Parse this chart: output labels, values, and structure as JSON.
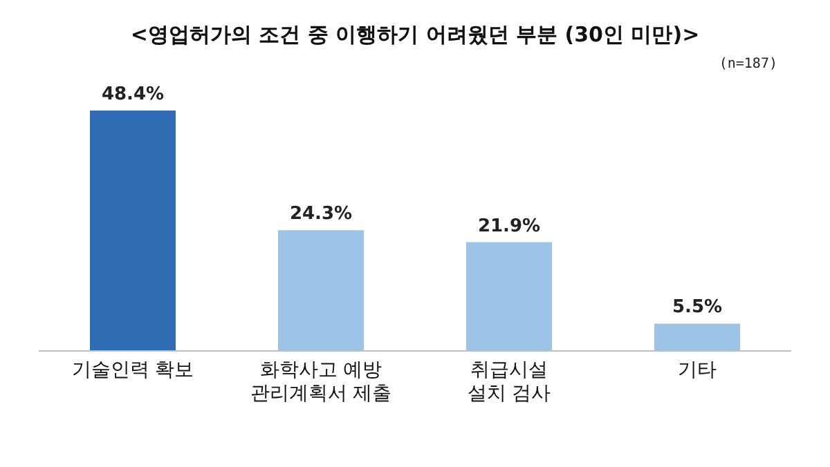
{
  "chart_data": {
    "type": "bar",
    "title": "<영업허가의 조건 중 이행하기 어려웠던 부분 (30인 미만)>",
    "annotations": [
      "(n=187)"
    ],
    "categories": [
      "기술인력 확보",
      "화학사고 예방\n관리계획서 제출",
      "취급시설\n설치 검사",
      "기타"
    ],
    "values": [
      48.4,
      24.3,
      21.9,
      5.5
    ],
    "colors": [
      "#2e6db4",
      "#9dc3e6",
      "#9dc3e6",
      "#9dc3e6"
    ],
    "value_labels": [
      "48.4%",
      "24.3%",
      "21.9%",
      "5.5%"
    ]
  }
}
